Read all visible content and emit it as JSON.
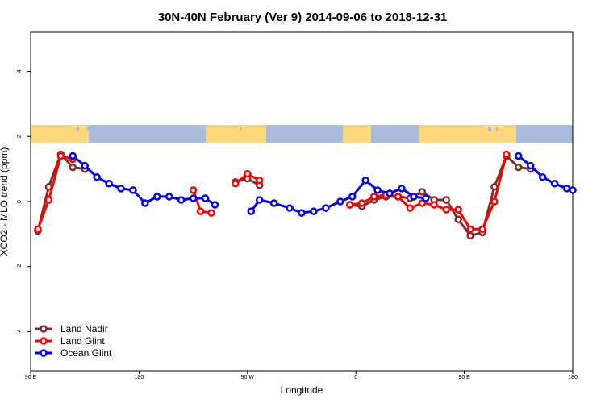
{
  "chart_data": {
    "type": "line",
    "title": "30N-40N February (Ver 9)   2014-09-06 to 2018-12-31",
    "xlabel": "Longitude",
    "ylabel": "XCO2 - MLO trend (ppm)",
    "xlim": [
      90,
      540
    ],
    "ylim": [
      -5.2,
      5.2
    ],
    "x_ticks": [
      {
        "value": 90,
        "label": "90 E"
      },
      {
        "value": 180,
        "label": "180"
      },
      {
        "value": 270,
        "label": "90 W"
      },
      {
        "value": 360,
        "label": "0"
      },
      {
        "value": 450,
        "label": "90 E"
      },
      {
        "value": 540,
        "label": "180"
      }
    ],
    "y_ticks": [
      {
        "value": -4,
        "label": "-4"
      },
      {
        "value": -2,
        "label": "-2"
      },
      {
        "value": 0,
        "label": "0"
      },
      {
        "value": 2,
        "label": "2"
      },
      {
        "value": 4,
        "label": "4"
      }
    ],
    "legend_position": "bottom-left",
    "map_strip": {
      "ymin": 1.8,
      "ymax": 2.35,
      "ocean_color": "#a9bcd9",
      "land_color": "#fcd67a"
    },
    "series": [
      {
        "name": "Land Nadir",
        "color": "#8b2a2a",
        "segments": [
          [
            [
              96,
              -0.9
            ],
            [
              105,
              0.45
            ],
            [
              115,
              1.45
            ],
            [
              125,
              1.05
            ],
            [
              135,
              1.0
            ]
          ],
          [
            [
              260,
              0.6
            ],
            [
              270,
              0.7
            ],
            [
              280,
              0.5
            ]
          ],
          [
            [
              355,
              -0.1
            ],
            [
              365,
              -0.15
            ],
            [
              375,
              0.05
            ],
            [
              385,
              0.15
            ],
            [
              395,
              0.15
            ],
            [
              405,
              0.1
            ],
            [
              415,
              0.3
            ],
            [
              425,
              0.05
            ],
            [
              435,
              0.05
            ],
            [
              445,
              -0.55
            ],
            [
              455,
              -1.05
            ],
            [
              465,
              -0.95
            ],
            [
              475,
              0.45
            ],
            [
              485,
              1.4
            ],
            [
              495,
              1.05
            ],
            [
              505,
              1.0
            ]
          ]
        ]
      },
      {
        "name": "Land Glint",
        "color": "#ff0000",
        "segments": [
          [
            [
              96,
              -0.85
            ],
            [
              105,
              0.05
            ],
            [
              115,
              1.4
            ],
            [
              125,
              1.3
            ]
          ],
          [
            [
              225,
              0.35
            ],
            [
              231,
              -0.3
            ],
            [
              240,
              -0.35
            ]
          ],
          [
            [
              260,
              0.55
            ],
            [
              270,
              0.85
            ],
            [
              280,
              0.65
            ]
          ],
          [
            [
              355,
              -0.1
            ],
            [
              365,
              -0.05
            ],
            [
              375,
              0.15
            ],
            [
              385,
              0.2
            ],
            [
              395,
              0.15
            ],
            [
              405,
              -0.2
            ],
            [
              415,
              -0.05
            ],
            [
              425,
              -0.1
            ],
            [
              435,
              -0.25
            ],
            [
              445,
              -0.25
            ],
            [
              455,
              -0.85
            ],
            [
              465,
              -0.85
            ],
            [
              475,
              0.0
            ],
            [
              485,
              1.45
            ]
          ]
        ]
      },
      {
        "name": "Ocean Glint",
        "color": "#0000ff",
        "segments": [
          [
            [
              125,
              1.4
            ],
            [
              135,
              1.1
            ],
            [
              145,
              0.75
            ],
            [
              155,
              0.55
            ],
            [
              165,
              0.4
            ],
            [
              175,
              0.35
            ],
            [
              185,
              -0.05
            ],
            [
              195,
              0.15
            ],
            [
              205,
              0.15
            ],
            [
              215,
              0.05
            ],
            [
              225,
              0.1
            ],
            [
              235,
              0.1
            ],
            [
              243,
              -0.1
            ]
          ],
          [
            [
              273,
              -0.3
            ],
            [
              280,
              0.05
            ],
            [
              292,
              -0.05
            ],
            [
              305,
              -0.2
            ],
            [
              315,
              -0.35
            ],
            [
              325,
              -0.3
            ],
            [
              335,
              -0.2
            ],
            [
              347,
              0.0
            ],
            [
              357,
              0.15
            ],
            [
              368,
              0.65
            ],
            [
              378,
              0.35
            ],
            [
              388,
              0.25
            ],
            [
              398,
              0.4
            ],
            [
              408,
              0.15
            ],
            [
              418,
              0.1
            ]
          ],
          [
            [
              495,
              1.4
            ],
            [
              505,
              1.1
            ],
            [
              515,
              0.75
            ],
            [
              525,
              0.55
            ],
            [
              535,
              0.4
            ],
            [
              540,
              0.35
            ]
          ]
        ]
      }
    ]
  }
}
